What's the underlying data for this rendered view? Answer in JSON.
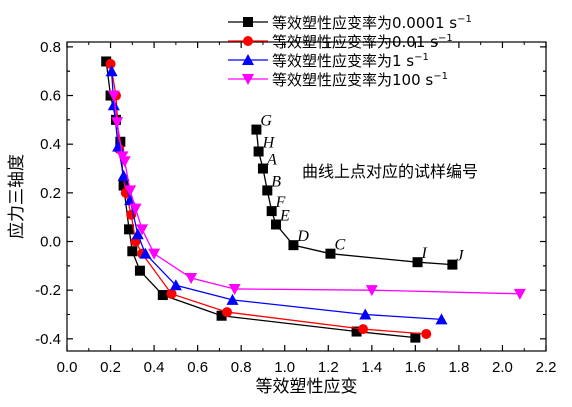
{
  "chart_data": {
    "type": "line",
    "xlabel": "等效塑性应变",
    "ylabel": "应力三轴度",
    "xlim": [
      0.0,
      2.2
    ],
    "ylim": [
      -0.45,
      0.82
    ],
    "x_ticks": [
      "0.0",
      "0.2",
      "0.4",
      "0.6",
      "0.8",
      "1.0",
      "1.2",
      "1.4",
      "1.6",
      "1.8",
      "2.0",
      "2.2"
    ],
    "y_ticks": [
      "-0.4",
      "-0.2",
      "0.0",
      "0.2",
      "0.4",
      "0.6",
      "0.8"
    ],
    "legend_position": "top-right",
    "annotation": "曲线上点对应的试样编号",
    "series": [
      {
        "name_main": "等效塑性应变率为0.0001 s",
        "name_sup": "−1",
        "color": "#000000",
        "marker": "square",
        "points": [
          [
            0.18,
            0.74
          ],
          [
            0.2,
            0.6
          ],
          [
            0.225,
            0.5
          ],
          [
            0.245,
            0.41
          ],
          [
            0.26,
            0.23
          ],
          [
            0.285,
            0.05
          ],
          [
            0.3,
            -0.04
          ],
          [
            0.335,
            -0.12
          ],
          [
            0.44,
            -0.22
          ],
          [
            0.71,
            -0.305
          ],
          [
            1.33,
            -0.37
          ],
          [
            1.6,
            -0.395
          ]
        ]
      },
      {
        "name_main": "等效塑性应变率为0.01 s",
        "name_sup": "−1",
        "color": "#ff0000",
        "marker": "circle",
        "points": [
          [
            0.2,
            0.73
          ],
          [
            0.225,
            0.6
          ],
          [
            0.24,
            0.38
          ],
          [
            0.27,
            0.2
          ],
          [
            0.295,
            0.11
          ],
          [
            0.315,
            0.0
          ],
          [
            0.345,
            -0.05
          ],
          [
            0.48,
            -0.215
          ],
          [
            0.735,
            -0.29
          ],
          [
            1.36,
            -0.36
          ],
          [
            1.65,
            -0.38
          ]
        ]
      },
      {
        "name_main": "等效塑性应变率为1 s",
        "name_sup": "−1",
        "color": "#0000ff",
        "marker": "triangle-up",
        "points": [
          [
            0.205,
            0.7
          ],
          [
            0.215,
            0.56
          ],
          [
            0.235,
            0.39
          ],
          [
            0.26,
            0.27
          ],
          [
            0.29,
            0.17
          ],
          [
            0.325,
            0.03
          ],
          [
            0.36,
            -0.05
          ],
          [
            0.5,
            -0.18
          ],
          [
            0.76,
            -0.24
          ],
          [
            1.37,
            -0.3
          ],
          [
            1.72,
            -0.32
          ]
        ]
      },
      {
        "name_main": "等效塑性应变率为100 s",
        "name_sup": "−1",
        "color": "#ff00ff",
        "marker": "triangle-down",
        "points": [
          [
            0.215,
            0.6
          ],
          [
            0.23,
            0.49
          ],
          [
            0.255,
            0.35
          ],
          [
            0.265,
            0.33
          ],
          [
            0.29,
            0.21
          ],
          [
            0.315,
            0.135
          ],
          [
            0.345,
            0.05
          ],
          [
            0.4,
            -0.05
          ],
          [
            0.57,
            -0.15
          ],
          [
            0.77,
            -0.195
          ],
          [
            1.4,
            -0.2
          ],
          [
            2.08,
            -0.215
          ]
        ]
      },
      {
        "name": "",
        "color": "#000000",
        "marker": "square",
        "points": [
          [
            0.87,
            0.46
          ],
          [
            0.88,
            0.37
          ],
          [
            0.9,
            0.3
          ],
          [
            0.92,
            0.21
          ],
          [
            0.94,
            0.125
          ],
          [
            0.96,
            0.07
          ],
          [
            1.04,
            -0.015
          ],
          [
            1.21,
            -0.05
          ],
          [
            1.61,
            -0.085
          ],
          [
            1.77,
            -0.095
          ]
        ]
      }
    ],
    "point_labels": [
      {
        "text": "G",
        "x": 0.87,
        "y": 0.46
      },
      {
        "text": "H",
        "x": 0.88,
        "y": 0.37
      },
      {
        "text": "A",
        "x": 0.9,
        "y": 0.3
      },
      {
        "text": "B",
        "x": 0.92,
        "y": 0.21
      },
      {
        "text": "F",
        "x": 0.94,
        "y": 0.125
      },
      {
        "text": "E",
        "x": 0.96,
        "y": 0.07
      },
      {
        "text": "D",
        "x": 1.04,
        "y": -0.015
      },
      {
        "text": "C",
        "x": 1.21,
        "y": -0.05
      },
      {
        "text": "I",
        "x": 1.61,
        "y": -0.085
      },
      {
        "text": "J",
        "x": 1.77,
        "y": -0.095
      }
    ]
  }
}
